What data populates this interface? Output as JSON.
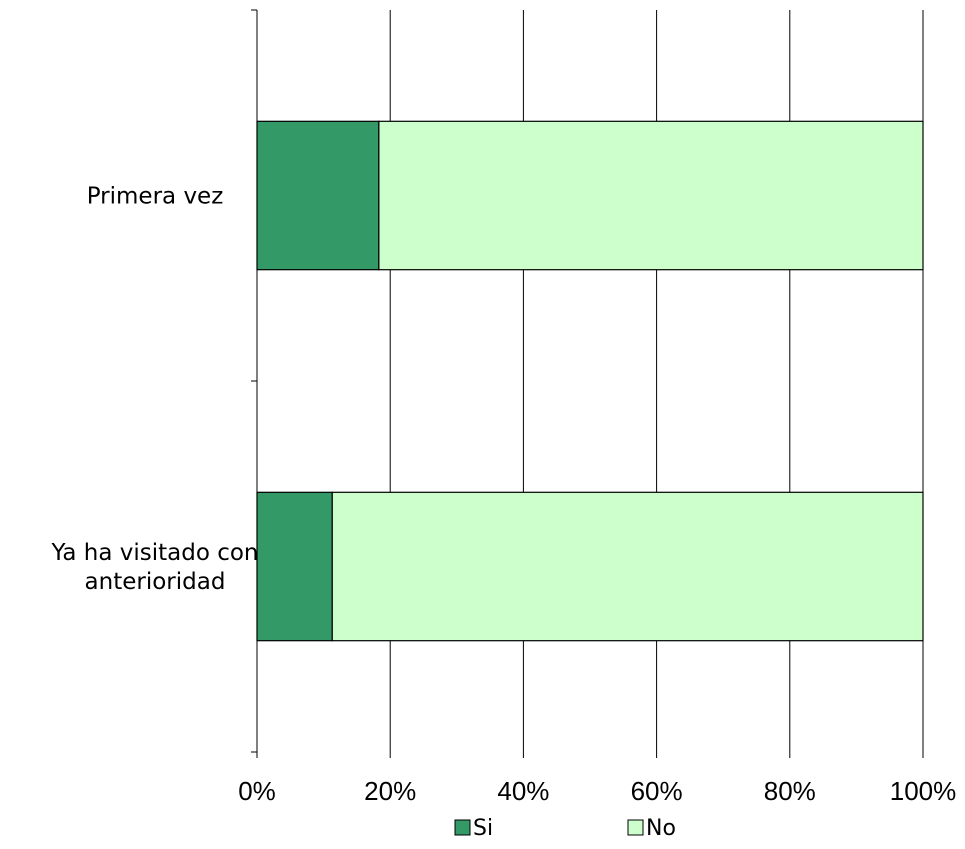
{
  "chart_data": {
    "type": "bar",
    "orientation": "horizontal",
    "stacked": "percent",
    "categories": [
      "Primera vez",
      "Ya ha visitado con anterioridad"
    ],
    "category_lines": [
      [
        "Primera vez"
      ],
      [
        "Ya ha visitado con",
        "anterioridad"
      ]
    ],
    "series": [
      {
        "name": "Si",
        "values": [
          18.3,
          11.3
        ],
        "color": "#339966"
      },
      {
        "name": "No",
        "values": [
          81.7,
          88.7
        ],
        "color": "#CCFFCC"
      }
    ],
    "xlim": [
      0,
      100
    ],
    "x_ticks": [
      "0%",
      "20%",
      "40%",
      "60%",
      "80%",
      "100%"
    ],
    "grid": "vertical",
    "legend": "bottom"
  }
}
